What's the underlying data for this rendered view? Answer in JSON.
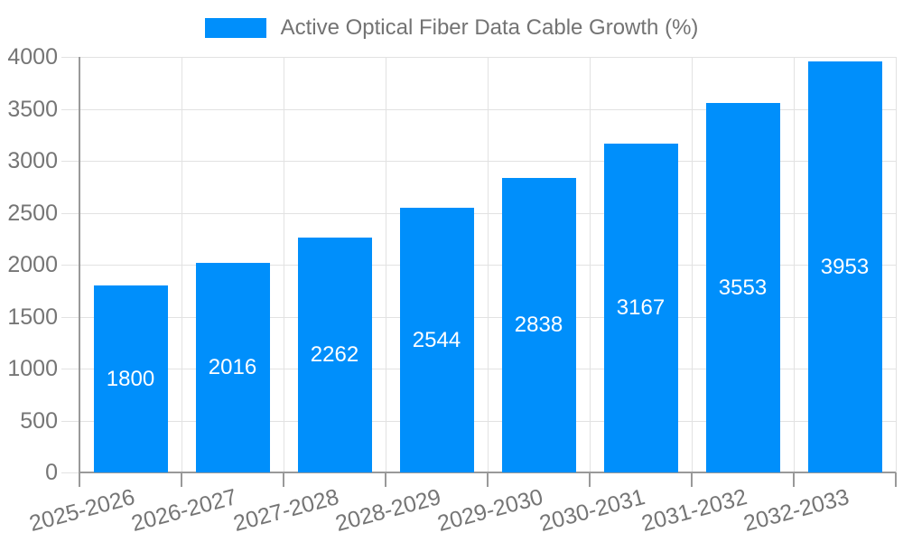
{
  "legend": {
    "label": "Active Optical Fiber Data Cable Growth (%)",
    "swatch_color": "#008FFB",
    "position": "top"
  },
  "chart_data": {
    "type": "bar",
    "title": "Active Optical Fiber Data Cable Growth (%)",
    "series": [
      {
        "name": "Active Optical Fiber Data Cable Growth (%)",
        "values": [
          1800,
          2016,
          2262,
          2544,
          2838,
          3167,
          3553,
          3953
        ],
        "color": "#008FFB"
      }
    ],
    "categories": [
      "2025-2026",
      "2026-2027",
      "2027-2028",
      "2028-2029",
      "2029-2030",
      "2030-2031",
      "2031-2032",
      "2032-2033"
    ],
    "value_labels_shown": true,
    "value_label_color": "#ffffff",
    "xlabel": "",
    "ylabel": "",
    "ylim": [
      0,
      4000
    ],
    "yticks": [
      0,
      500,
      1000,
      1500,
      2000,
      2500,
      3000,
      3500,
      4000
    ],
    "grid": true,
    "grid_vertical": true,
    "legend_position": "top"
  },
  "colors": {
    "accent": "#008FFB",
    "grid": "#e2e2e2",
    "axis": "#999999",
    "tick_label": "#757575",
    "legend_text": "#737373",
    "background": "#ffffff",
    "bar_value_text": "#ffffff"
  }
}
